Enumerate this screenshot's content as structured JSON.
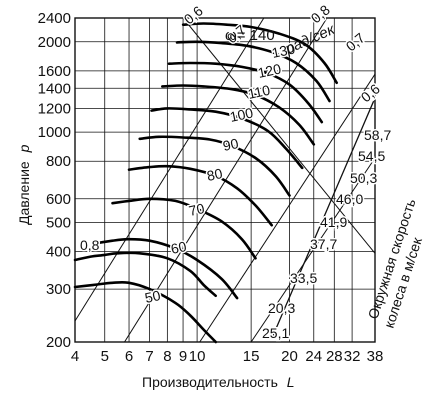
{
  "chart_data": {
    "type": "line",
    "xlabel": "Производительность",
    "xlabel_symbol": "L",
    "ylabel": "Давление",
    "ylabel_symbol": "p",
    "x_scale": "log",
    "y_scale": "log",
    "xlim": [
      4,
      38
    ],
    "ylim": [
      200,
      2400
    ],
    "x_ticks": [
      4,
      5,
      6,
      7,
      8,
      9,
      10,
      15,
      20,
      24,
      28,
      32,
      38
    ],
    "y_ticks": [
      200,
      300,
      400,
      500,
      600,
      800,
      1000,
      1200,
      1400,
      1600,
      2000,
      2400
    ],
    "grid": true,
    "omega_prefix": "ω=",
    "omega_unit": "рад/сек",
    "speed_axis_label_line1": "Окружная скорость",
    "speed_axis_label_line2": "колеса в м/сек",
    "efficiency_labels": [
      "0,8",
      "0,6",
      "0,7",
      "0,8",
      "0,7",
      "0,6"
    ],
    "speed_labels": [
      "58,7",
      "54,5",
      "50,3",
      "46,0",
      "41,9",
      "37,7",
      "33,5",
      "20,3",
      "25,1"
    ],
    "series": [
      {
        "name": "140",
        "x": [
          9.0,
          10.5,
          12.5,
          15.0,
          18.5,
          22.5,
          26.0,
          28.5
        ],
        "y": [
          2280,
          2300,
          2280,
          2240,
          2130,
          1960,
          1700,
          1460
        ]
      },
      {
        "name": "130",
        "x": [
          8.6,
          10.0,
          12.0,
          14.5,
          17.5,
          21.0,
          24.5,
          27.0
        ],
        "y": [
          1990,
          2000,
          1980,
          1940,
          1850,
          1700,
          1480,
          1270
        ]
      },
      {
        "name": "120",
        "x": [
          8.1,
          9.5,
          11.5,
          14.0,
          17.0,
          20.0,
          23.0,
          25.5
        ],
        "y": [
          1690,
          1700,
          1690,
          1650,
          1570,
          1440,
          1250,
          1080
        ]
      },
      {
        "name": "110",
        "x": [
          7.7,
          9.0,
          10.5,
          13.0,
          15.5,
          18.5,
          21.5,
          24.0
        ],
        "y": [
          1420,
          1430,
          1420,
          1390,
          1330,
          1210,
          1060,
          910
        ]
      },
      {
        "name": "100",
        "x": [
          7.1,
          8.0,
          9.5,
          11.5,
          14.0,
          17.0,
          19.5,
          22.0
        ],
        "y": [
          1180,
          1200,
          1190,
          1170,
          1110,
          1010,
          880,
          760
        ]
      },
      {
        "name": "90",
        "x": [
          6.5,
          7.5,
          9.0,
          11.0,
          13.0,
          15.5,
          18.0,
          20.0
        ],
        "y": [
          950,
          965,
          960,
          945,
          900,
          820,
          715,
          615
        ]
      },
      {
        "name": "80",
        "x": [
          6.0,
          7.0,
          8.0,
          9.5,
          11.5,
          13.5,
          15.5,
          17.5
        ],
        "y": [
          750,
          765,
          770,
          755,
          715,
          650,
          570,
          490
        ]
      },
      {
        "name": "70",
        "x": [
          5.3,
          6.0,
          7.0,
          8.5,
          10.0,
          12.0,
          14.0,
          15.5
        ],
        "y": [
          580,
          590,
          600,
          590,
          555,
          505,
          440,
          380
        ]
      },
      {
        "name": "60",
        "x": [
          4.6,
          5.3,
          6.0,
          7.0,
          8.5,
          10.0,
          12.0,
          13.5
        ],
        "y": [
          425,
          435,
          440,
          435,
          410,
          375,
          325,
          280
        ]
      },
      {
        "name": "50",
        "x": [
          4.0,
          4.6,
          5.3,
          6.0,
          7.0,
          8.5,
          9.5,
          10.5,
          11.5
        ],
        "y": [
          305,
          310,
          315,
          315,
          300,
          270,
          245,
          220,
          200
        ]
      },
      {
        "name": "",
        "x": [
          4.0,
          4.5,
          5.0,
          5.5,
          6.5,
          8.0,
          9.5,
          10.5,
          11.5
        ],
        "y": [
          375,
          385,
          390,
          395,
          395,
          380,
          345,
          310,
          285
        ]
      }
    ]
  }
}
